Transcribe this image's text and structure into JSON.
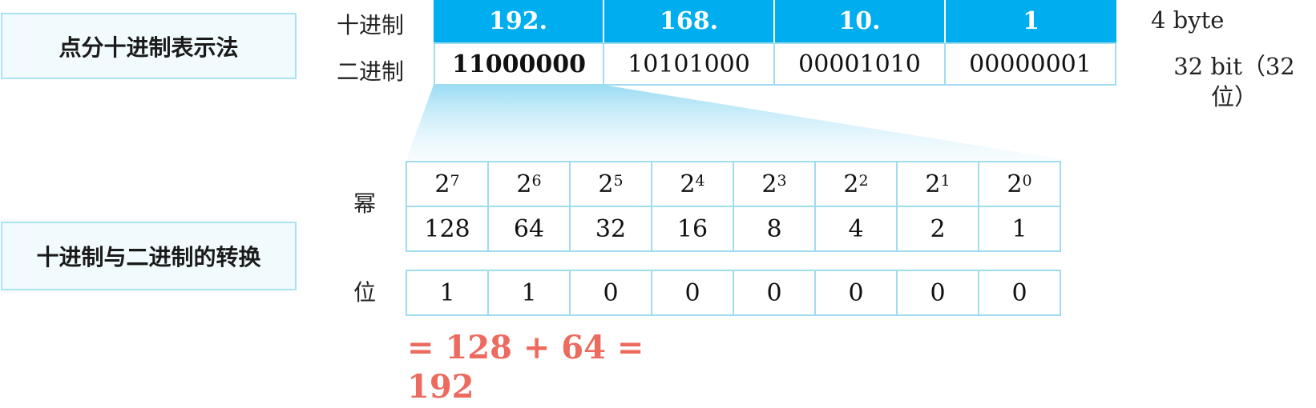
{
  "sections": {
    "dotted_decimal_title": "点分十进制表示法",
    "conversion_title": "十进制与二进制的转换"
  },
  "ip_row_labels": {
    "decimal": "十进制",
    "binary": "二进制"
  },
  "ip_octets": [
    {
      "decimal": "192.",
      "binary": "11000000"
    },
    {
      "decimal": "168.",
      "binary": "10101000"
    },
    {
      "decimal": "10.",
      "binary": "00001010"
    },
    {
      "decimal": "1",
      "binary": "00000001"
    }
  ],
  "size_notes": {
    "bytes": "4 byte",
    "bits": "32 bit（32位）"
  },
  "conversion_row_labels": {
    "power": "幂",
    "bit": "位"
  },
  "powers": [
    {
      "base": "2",
      "exp": "7",
      "value": "128",
      "bit": "1"
    },
    {
      "base": "2",
      "exp": "6",
      "value": "64",
      "bit": "1"
    },
    {
      "base": "2",
      "exp": "5",
      "value": "32",
      "bit": "0"
    },
    {
      "base": "2",
      "exp": "4",
      "value": "16",
      "bit": "0"
    },
    {
      "base": "2",
      "exp": "3",
      "value": "8",
      "bit": "0"
    },
    {
      "base": "2",
      "exp": "2",
      "value": "4",
      "bit": "0"
    },
    {
      "base": "2",
      "exp": "1",
      "value": "2",
      "bit": "0"
    },
    {
      "base": "2",
      "exp": "0",
      "value": "1",
      "bit": "0"
    }
  ],
  "result_formula": "= 128 + 64 = 192",
  "colors": {
    "decimal_fill": "#00aeef",
    "grid_border": "#9fdcf0",
    "result_text": "#ec6a5e"
  }
}
